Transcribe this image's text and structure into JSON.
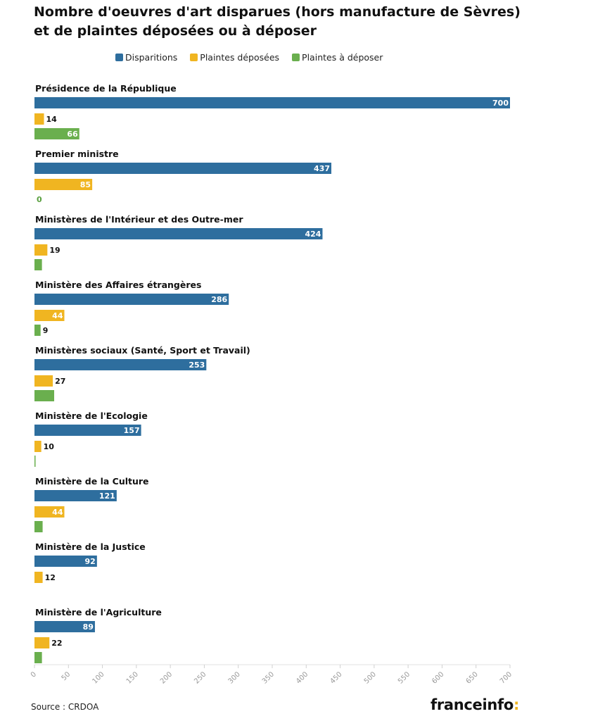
{
  "title_line1": "Nombre d'oeuvres d'art disparues (hors manufacture de Sèvres)",
  "title_line2": "et de plaintes déposées ou à déposer",
  "legend": [
    {
      "label": "Disparitions",
      "color": "#2e6e9e"
    },
    {
      "label": "Plaintes déposées",
      "color": "#f0b521"
    },
    {
      "label": "Plaintes à déposer",
      "color": "#6aaf4e"
    }
  ],
  "source": "Source : CRDOA",
  "brand": {
    "name": "franceinfo",
    "accent": ":"
  },
  "chart_data": {
    "type": "bar",
    "orientation": "horizontal",
    "categories": [
      "Présidence de la République",
      "Premier ministre",
      "Ministères de l'Intérieur et des Outre-mer",
      "Ministère des Affaires étrangères",
      "Ministères sociaux (Santé, Sport et Travail)",
      "Ministère de l'Ecologie",
      "Ministère de la Culture",
      "Ministère de la Justice",
      "Ministère de l'Agriculture"
    ],
    "series": [
      {
        "name": "Disparitions",
        "color": "#2e6e9e",
        "values": [
          700,
          437,
          424,
          286,
          253,
          157,
          121,
          92,
          89
        ]
      },
      {
        "name": "Plaintes déposées",
        "color": "#f0b521",
        "values": [
          14,
          85,
          19,
          44,
          27,
          10,
          44,
          12,
          22
        ]
      },
      {
        "name": "Plaintes à déposer",
        "color": "#6aaf4e",
        "values": [
          66,
          0,
          11,
          9,
          29,
          1,
          12,
          null,
          11
        ]
      }
    ],
    "labels": [
      [
        "700",
        "14",
        "66"
      ],
      [
        "437",
        "85",
        "0"
      ],
      [
        "424",
        "19",
        ""
      ],
      [
        "286",
        "44",
        "9"
      ],
      [
        "253",
        "27",
        ""
      ],
      [
        "157",
        "10",
        ""
      ],
      [
        "121",
        "44",
        ""
      ],
      [
        "92",
        "12",
        ""
      ],
      [
        "89",
        "22",
        ""
      ]
    ],
    "xlim": [
      0,
      700
    ],
    "xticks": [
      "0",
      "50",
      "100",
      "150",
      "200",
      "250",
      "300",
      "350",
      "400",
      "450",
      "500",
      "550",
      "600",
      "650",
      "700"
    ],
    "grid": false
  }
}
